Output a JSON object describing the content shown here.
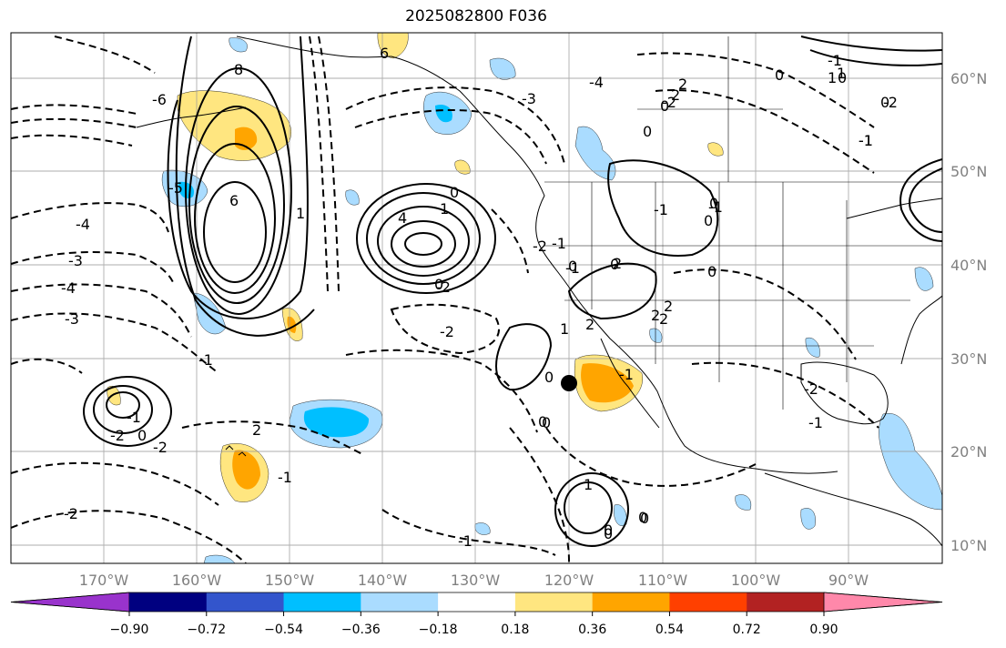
{
  "title": "2025082800 F036",
  "map": {
    "lat_labels": [
      "60°N",
      "50°N",
      "40°N",
      "30°N",
      "20°N",
      "10°N"
    ],
    "lon_labels": [
      "170°W",
      "160°W",
      "150°W",
      "140°W",
      "130°W",
      "120°W",
      "110°W",
      "100°W",
      "90°W"
    ],
    "contour_labels": [
      "6",
      "-4",
      "8",
      "6",
      "-4",
      "-3",
      "0",
      "-2",
      "-2",
      "1",
      "-5",
      "-1",
      "-6",
      "1",
      "-3",
      "-4",
      "-3",
      "-2",
      "-2",
      "-1",
      "-1",
      "2",
      "-2",
      "0",
      "-2",
      "4",
      "-1",
      "-2",
      "-1",
      "0",
      "1",
      "-1",
      "-2",
      "0",
      "-1",
      "0",
      "1",
      "0",
      "-1",
      "2",
      "2",
      "-1",
      "-1",
      "0",
      "0",
      "1",
      "0",
      "-1",
      "0",
      "0",
      "0",
      "0",
      "0",
      "-2",
      "0",
      "0",
      "0",
      "2",
      "2",
      "-1",
      "0",
      "2",
      "2",
      "2",
      "-1",
      "1",
      "0",
      "0"
    ],
    "marker": "black-dot"
  },
  "colorbar": {
    "colors": [
      "#9933cc",
      "#000080",
      "#3355cc",
      "#00bfff",
      "#aadcff",
      "#ffffff",
      "#ffe680",
      "#ffa500",
      "#ff4000",
      "#b22222",
      "#ff88aa"
    ],
    "tick_labels": [
      "−0.90",
      "−0.72",
      "−0.54",
      "−0.36",
      "−0.18",
      "0.18",
      "0.36",
      "0.54",
      "0.72",
      "0.90"
    ]
  }
}
